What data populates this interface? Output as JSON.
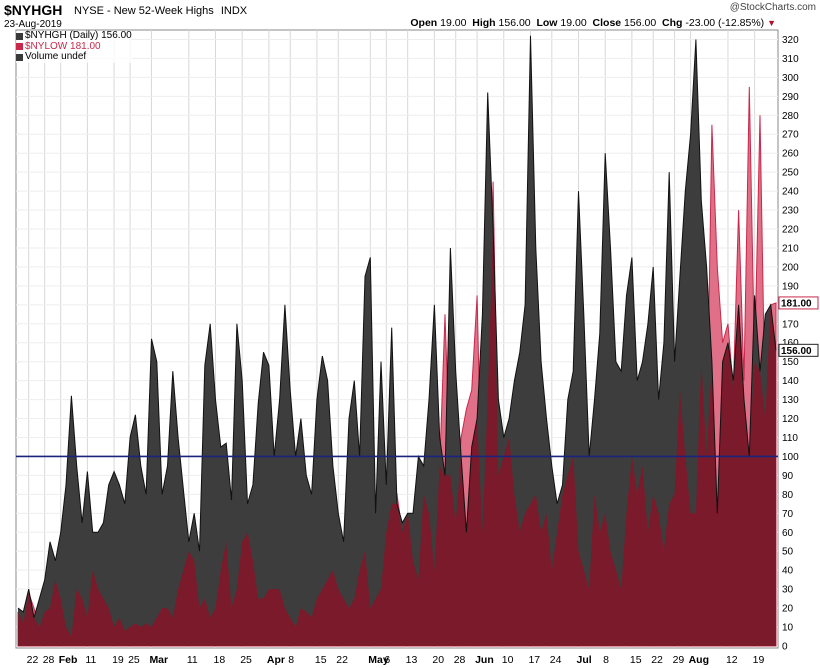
{
  "header": {
    "symbol": "$NYHGH",
    "description": "NYSE - New 52-Week Highs",
    "exchange": "INDX",
    "date": "23-Aug-2019",
    "brand": "@StockCharts.com",
    "open_label": "Open",
    "open": "19.00",
    "high_label": "High",
    "high": "156.00",
    "low_label": "Low",
    "low": "19.00",
    "close_label": "Close",
    "close": "156.00",
    "chg_label": "Chg",
    "chg": "-23.00 (-12.85%)"
  },
  "legend": [
    {
      "text": "$NYHGH (Daily) 156.00",
      "color": "#3a3a3a"
    },
    {
      "text": "$NYLOW 181.00",
      "color": "#c8284a"
    },
    {
      "text": "Volume undef",
      "color": "#3a3a3a"
    }
  ],
  "colors": {
    "highs_fill": "#3d3d3d",
    "lows_fill": "#7a1a2a",
    "lows_light_fill": "#e07088",
    "lows_line": "#c8284a",
    "ref_line": "#1a237e",
    "grid": "#d8d8d8"
  },
  "chart_data": {
    "type": "area",
    "ylim": [
      0,
      325
    ],
    "ylabels": [
      0,
      10,
      20,
      30,
      40,
      50,
      60,
      70,
      80,
      90,
      100,
      110,
      120,
      130,
      140,
      150,
      160,
      170,
      180,
      190,
      200,
      210,
      220,
      230,
      240,
      250,
      260,
      270,
      280,
      290,
      300,
      310,
      320
    ],
    "reference_line": 100,
    "price_labels": [
      {
        "value": 181,
        "text": "181.00"
      },
      {
        "value": 156,
        "text": "156.00"
      }
    ],
    "xticks": [
      {
        "i": 2,
        "label": "22"
      },
      {
        "i": 5,
        "label": "28"
      },
      {
        "i": 8,
        "label": "Feb",
        "bold": true
      },
      {
        "i": 13,
        "label": "11"
      },
      {
        "i": 18,
        "label": "19"
      },
      {
        "i": 21,
        "label": "25"
      },
      {
        "i": 25,
        "label": "Mar",
        "bold": true
      },
      {
        "i": 32,
        "label": "11"
      },
      {
        "i": 37,
        "label": "18"
      },
      {
        "i": 42,
        "label": "25"
      },
      {
        "i": 47,
        "label": "Apr",
        "bold": true
      },
      {
        "i": 51,
        "label": "8"
      },
      {
        "i": 56,
        "label": "15"
      },
      {
        "i": 60,
        "label": "22"
      },
      {
        "i": 66,
        "label": "May",
        "bold": true
      },
      {
        "i": 69,
        "label": "6"
      },
      {
        "i": 73,
        "label": "13"
      },
      {
        "i": 78,
        "label": "20"
      },
      {
        "i": 82,
        "label": "28"
      },
      {
        "i": 86,
        "label": "Jun",
        "bold": true
      },
      {
        "i": 91,
        "label": "10"
      },
      {
        "i": 96,
        "label": "17"
      },
      {
        "i": 100,
        "label": "24"
      },
      {
        "i": 105,
        "label": "Jul",
        "bold": true
      },
      {
        "i": 110,
        "label": "8"
      },
      {
        "i": 115,
        "label": "15"
      },
      {
        "i": 119,
        "label": "22"
      },
      {
        "i": 123,
        "label": "29"
      },
      {
        "i": 126,
        "label": "Aug",
        "bold": true
      },
      {
        "i": 133,
        "label": "12"
      },
      {
        "i": 138,
        "label": "19"
      }
    ],
    "series": [
      {
        "name": "$NYHGH",
        "values": [
          20,
          18,
          30,
          15,
          25,
          35,
          55,
          45,
          60,
          85,
          132,
          95,
          65,
          92,
          60,
          60,
          65,
          85,
          92,
          85,
          75,
          110,
          122,
          95,
          80,
          162,
          150,
          80,
          95,
          145,
          110,
          82,
          55,
          70,
          50,
          148,
          170,
          130,
          105,
          107,
          77,
          170,
          140,
          75,
          85,
          128,
          155,
          148,
          100,
          130,
          180,
          135,
          100,
          120,
          90,
          80,
          130,
          153,
          140,
          95,
          70,
          55,
          120,
          140,
          100,
          195,
          205,
          70,
          150,
          85,
          168,
          75,
          65,
          70,
          70,
          100,
          95,
          130,
          180,
          110,
          90,
          210,
          145,
          100,
          60,
          105,
          120,
          175,
          292,
          220,
          130,
          110,
          120,
          140,
          155,
          180,
          322,
          210,
          150,
          120,
          95,
          75,
          85,
          130,
          145,
          240,
          175,
          100,
          130,
          165,
          260,
          210,
          150,
          145,
          185,
          205,
          140,
          150,
          170,
          200,
          130,
          160,
          250,
          150,
          195,
          240,
          270,
          320,
          235,
          200,
          150,
          70,
          150,
          160,
          140,
          180,
          130,
          100,
          185,
          145,
          175,
          180,
          156
        ]
      },
      {
        "name": "$NYLOW",
        "values": [
          18,
          12,
          28,
          20,
          10,
          18,
          20,
          35,
          25,
          10,
          5,
          30,
          25,
          15,
          40,
          30,
          25,
          20,
          10,
          15,
          8,
          10,
          12,
          10,
          12,
          10,
          15,
          20,
          20,
          15,
          30,
          40,
          50,
          45,
          20,
          25,
          15,
          20,
          40,
          55,
          20,
          30,
          55,
          60,
          45,
          25,
          25,
          30,
          30,
          30,
          20,
          15,
          10,
          20,
          18,
          15,
          25,
          30,
          35,
          40,
          30,
          25,
          20,
          25,
          40,
          50,
          20,
          25,
          30,
          60,
          75,
          80,
          60,
          70,
          45,
          35,
          80,
          70,
          40,
          95,
          175,
          90,
          65,
          110,
          125,
          135,
          185,
          60,
          130,
          245,
          90,
          100,
          110,
          80,
          60,
          70,
          75,
          80,
          60,
          70,
          40,
          60,
          80,
          90,
          100,
          50,
          40,
          30,
          80,
          60,
          70,
          50,
          40,
          30,
          70,
          100,
          80,
          95,
          60,
          80,
          70,
          50,
          75,
          80,
          135,
          100,
          70,
          70,
          150,
          100,
          275,
          200,
          160,
          170,
          135,
          230,
          140,
          295,
          150,
          280,
          120,
          180,
          181
        ]
      }
    ]
  }
}
